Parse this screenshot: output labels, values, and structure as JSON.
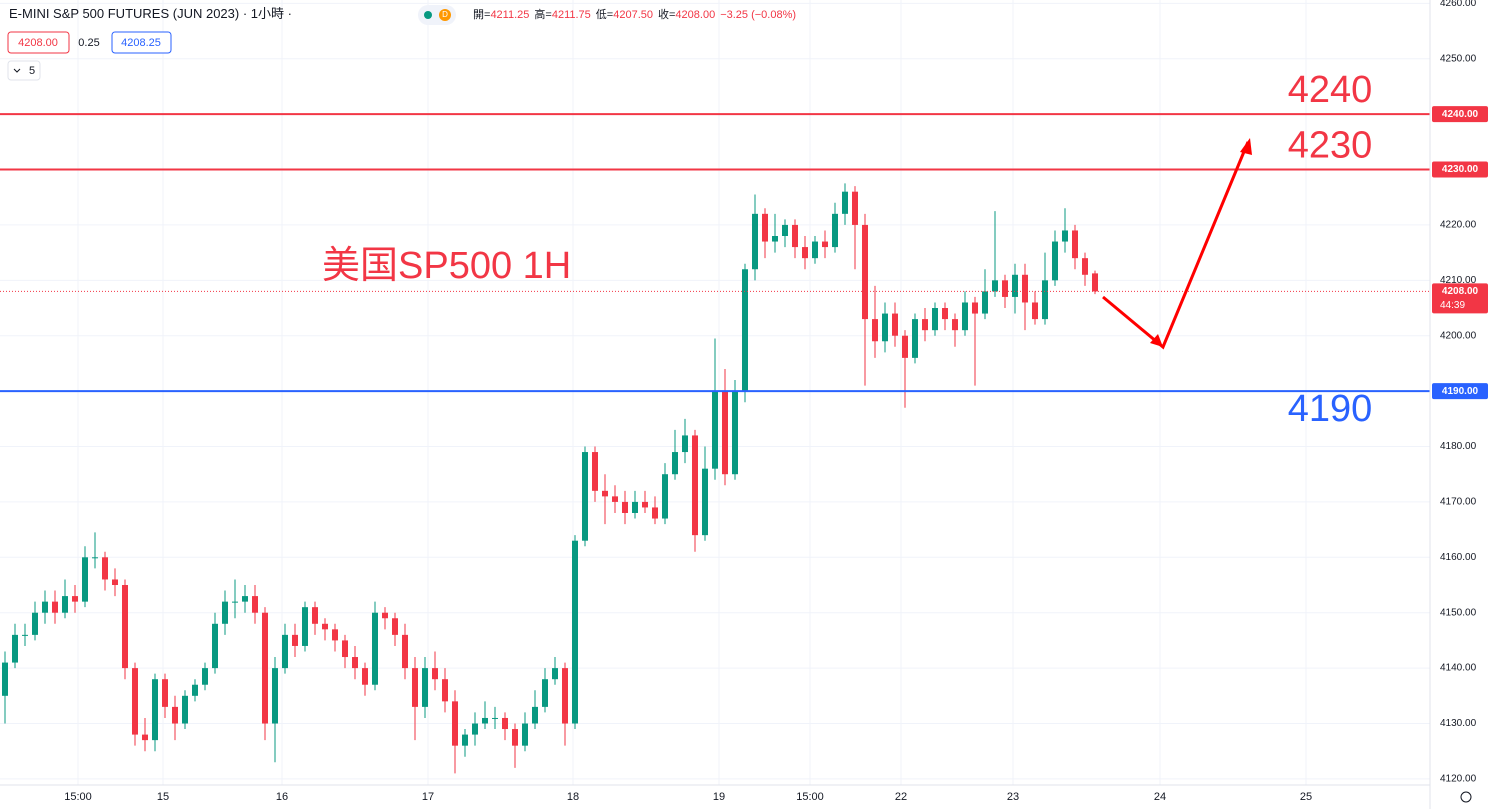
{
  "header": {
    "title": "E-MINI S&P 500 FUTURES (JUN 2023)",
    "interval": "1小時",
    "status": "D",
    "ohlc": [
      {
        "key": "開=",
        "val": "4211.25"
      },
      {
        "key": "高=",
        "val": "4211.75"
      },
      {
        "key": "低=",
        "val": "4207.50"
      },
      {
        "key": "收=",
        "val": "4208.00"
      }
    ],
    "change": "−3.25 (−0.08%)",
    "sell": "4208.00",
    "spread": "0.25",
    "buy": "4208.25",
    "indicators": "5"
  },
  "chart_data": {
    "type": "candlestick",
    "title": "美国SP500 1H",
    "up_color": "#089981",
    "down_color": "#f23645",
    "xlim": [
      -0.5,
      142.5
    ],
    "xticks": [
      {
        "value": 7.3,
        "label": "15:00"
      },
      {
        "value": 15.8,
        "label": "15"
      },
      {
        "value": 27.7,
        "label": "16"
      },
      {
        "value": 42.3,
        "label": "17"
      },
      {
        "value": 56.8,
        "label": "18"
      },
      {
        "value": 71.4,
        "label": "19"
      },
      {
        "value": 80.5,
        "label": "15:00"
      },
      {
        "value": 89.6,
        "label": "22"
      },
      {
        "value": 100.8,
        "label": "23"
      },
      {
        "value": 115.5,
        "label": "24"
      },
      {
        "value": 130.1,
        "label": "25"
      }
    ],
    "ylim": [
      4118.9,
      4260.6
    ],
    "yticks": [
      {
        "value": 4120,
        "label": "4120.00"
      },
      {
        "value": 4130,
        "label": "4130.00"
      },
      {
        "value": 4140,
        "label": "4140.00"
      },
      {
        "value": 4150,
        "label": "4150.00"
      },
      {
        "value": 4160,
        "label": "4160.00"
      },
      {
        "value": 4170,
        "label": "4170.00"
      },
      {
        "value": 4180,
        "label": "4180.00"
      },
      {
        "value": 4200,
        "label": "4200.00"
      },
      {
        "value": 4210,
        "label": "4210.00"
      },
      {
        "value": 4220,
        "label": "4220.00"
      },
      {
        "value": 4250,
        "label": "4250.00"
      },
      {
        "value": 4260,
        "label": "4260.00"
      }
    ],
    "grid": true,
    "open": [
      4135,
      4141,
      4146,
      4146,
      4150,
      4152,
      4150,
      4153,
      4152,
      4160,
      4160,
      4156,
      4155,
      4140,
      4128,
      4127,
      4138,
      4133,
      4130,
      4135,
      4137,
      4140,
      4148,
      4152,
      4152,
      4153,
      4150,
      4130,
      4140,
      4146,
      4144,
      4151,
      4148,
      4147,
      4145,
      4142,
      4140,
      4137,
      4150,
      4149,
      4146,
      4140,
      4133,
      4140,
      4138,
      4134,
      4126,
      4128,
      4130,
      4131,
      4131,
      4129,
      4126,
      4130,
      4133,
      4138,
      4140,
      4130,
      4163,
      4179,
      4172,
      4171,
      4170,
      4168,
      4170,
      4169,
      4167,
      4175,
      4179,
      4182,
      4164,
      4176,
      4190,
      4175,
      4190,
      4212,
      4222,
      4217,
      4218,
      4220,
      4216,
      4214,
      4217,
      4216,
      4222,
      4226,
      4220,
      4203,
      4199,
      4204,
      4200,
      4196,
      4203,
      4201,
      4205,
      4203,
      4201,
      4206,
      4204,
      4208,
      4210,
      4207,
      4211,
      4206,
      4203,
      4210,
      4217,
      4219,
      4214,
      4211.25
    ],
    "high": [
      4143,
      4148,
      4148,
      4152,
      4154,
      4154,
      4156,
      4155,
      4162,
      4164.5,
      4161,
      4158,
      4156,
      4141,
      4131,
      4139,
      4139,
      4135,
      4136,
      4138,
      4141,
      4150,
      4154,
      4156,
      4155,
      4155,
      4151,
      4142,
      4148,
      4148,
      4152,
      4152,
      4149,
      4148,
      4146,
      4144,
      4141,
      4152,
      4151,
      4150,
      4148,
      4142,
      4142,
      4143,
      4140,
      4136,
      4129,
      4132,
      4134,
      4133,
      4132,
      4130,
      4132,
      4136,
      4140,
      4142,
      4141,
      4164,
      4180,
      4180,
      4175,
      4173,
      4172,
      4172,
      4172,
      4171,
      4177,
      4183,
      4185,
      4183,
      4180,
      4199.5,
      4194,
      4192,
      4213,
      4225.5,
      4223,
      4222,
      4221,
      4221,
      4218,
      4218,
      4219,
      4224,
      4227.5,
      4227,
      4222,
      4209,
      4206,
      4206,
      4201,
      4204,
      4205,
      4206,
      4206,
      4204,
      4208,
      4207,
      4212,
      4222.5,
      4211,
      4213,
      4213,
      4208,
      4215,
      4219,
      4223,
      4220,
      4215,
      4211.75
    ],
    "low": [
      4130,
      4140,
      4144,
      4145,
      4148,
      4148,
      4149,
      4150,
      4151,
      4158,
      4154,
      4153,
      4138,
      4126,
      4125,
      4125,
      4131,
      4127,
      4129,
      4134,
      4136,
      4139,
      4146,
      4149,
      4150,
      4148,
      4127,
      4123,
      4139,
      4142,
      4143,
      4146,
      4145,
      4143,
      4140,
      4138,
      4135,
      4136,
      4147,
      4144,
      4138,
      4127,
      4131,
      4136,
      4132,
      4121,
      4124,
      4126,
      4129,
      4129,
      4127,
      4122,
      4125,
      4129,
      4132,
      4137,
      4126,
      4129,
      4162,
      4170,
      4166,
      4168,
      4166,
      4167,
      4168,
      4166,
      4166,
      4174,
      4177,
      4161,
      4163,
      4174,
      4173,
      4174,
      4188,
      4210,
      4214,
      4215,
      4216,
      4214,
      4212,
      4213,
      4214,
      4215,
      4220,
      4212,
      4191,
      4196,
      4197,
      4198,
      4187,
      4195,
      4199,
      4200,
      4201,
      4198,
      4200,
      4191,
      4203,
      4207,
      4205,
      4204,
      4201,
      4202,
      4202,
      4209,
      4215,
      4212,
      4209,
      4207.5
    ],
    "close": [
      4141,
      4146,
      4146,
      4150,
      4152,
      4150,
      4153,
      4152,
      4160,
      4160,
      4156,
      4155,
      4140,
      4128,
      4127,
      4138,
      4133,
      4130,
      4135,
      4137,
      4140,
      4148,
      4152,
      4152,
      4153,
      4150,
      4130,
      4140,
      4146,
      4144,
      4151,
      4148,
      4147,
      4145,
      4142,
      4140,
      4137,
      4150,
      4149,
      4146,
      4140,
      4133,
      4140,
      4138,
      4134,
      4126,
      4128,
      4130,
      4131,
      4131,
      4129,
      4126,
      4130,
      4133,
      4138,
      4140,
      4130,
      4163,
      4179,
      4172,
      4171,
      4170,
      4168,
      4170,
      4169,
      4167,
      4175,
      4179,
      4182,
      4164,
      4176,
      4190,
      4175,
      4190,
      4212,
      4222,
      4217,
      4218,
      4220,
      4216,
      4214,
      4217,
      4216,
      4222,
      4226,
      4220,
      4203,
      4199,
      4204,
      4200,
      4196,
      4203,
      4201,
      4205,
      4203,
      4201,
      4206,
      4204,
      4208,
      4210,
      4207,
      4211,
      4206,
      4203,
      4210,
      4217,
      4219,
      4214,
      4211,
      4208
    ],
    "hlines": [
      {
        "value": 4240,
        "label": "4240.00",
        "annotation": "4240",
        "color": "#f23645",
        "annotation_position": "above"
      },
      {
        "value": 4230,
        "label": "4230.00",
        "annotation": "4230",
        "color": "#f23645",
        "annotation_position": "above"
      },
      {
        "value": 4190,
        "label": "4190.00",
        "annotation": "4190",
        "color": "#2962ff",
        "annotation_position": "below"
      }
    ],
    "last_price": {
      "value": 4208,
      "label": "4208.00",
      "countdown": "44:39",
      "color": "#f23645"
    }
  }
}
